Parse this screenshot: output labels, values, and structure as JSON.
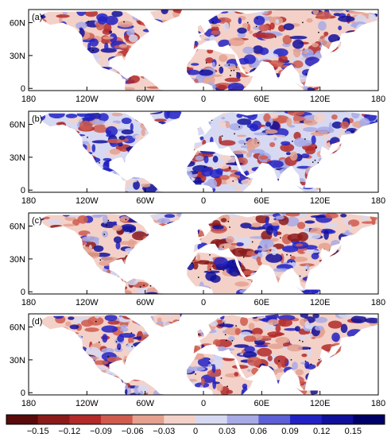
{
  "panels": [
    {
      "label": "(a)"
    },
    {
      "label": "(b)"
    },
    {
      "label": "(c)"
    },
    {
      "label": "(d)"
    }
  ],
  "lat_ticks": [
    "60N",
    "30N",
    "0"
  ],
  "lon_ticks": [
    "180",
    "120W",
    "60W",
    "0",
    "60E",
    "120E",
    "180"
  ],
  "colorbar": {
    "tick_labels": [
      "−0.15",
      "−0.12",
      "−0.09",
      "−0.06",
      "−0.03",
      "0",
      "0.03",
      "0.06",
      "0.09",
      "0.12",
      "0.15"
    ],
    "colors": [
      "#5a0a0a",
      "#8b1a1a",
      "#b22a2a",
      "#cf5b4e",
      "#e4a18f",
      "#f3d1c8",
      "#d7d9f2",
      "#a8aae6",
      "#5d5fd6",
      "#2222c4",
      "#10109a",
      "#000066"
    ]
  }
}
